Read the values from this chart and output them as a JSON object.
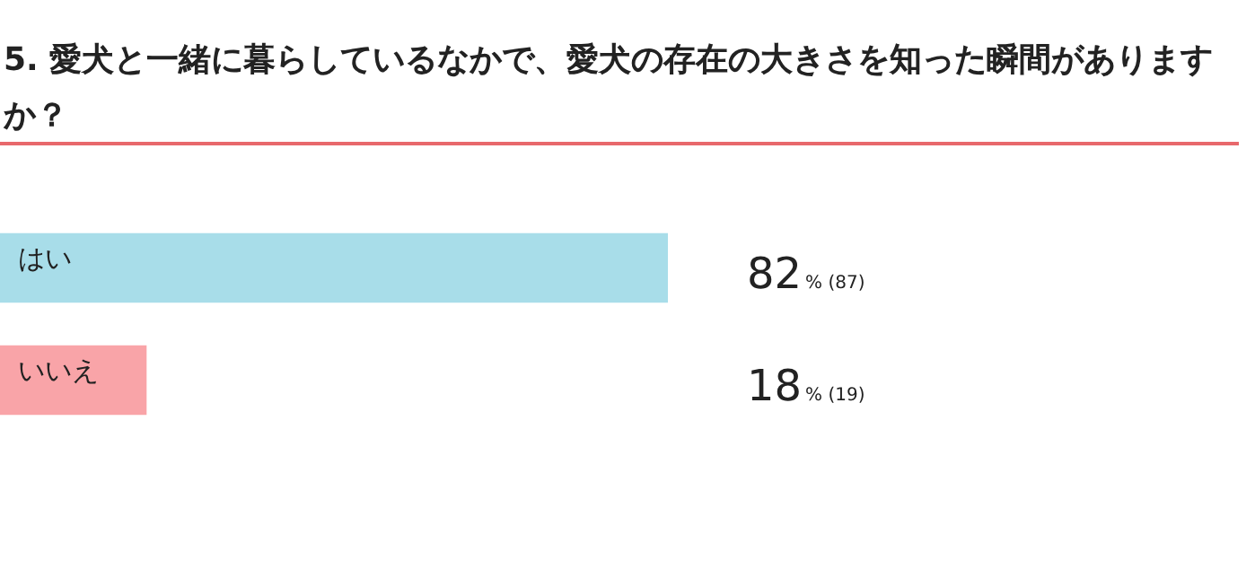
{
  "chart_data": {
    "type": "bar",
    "orientation": "horizontal",
    "title": "5. 愛犬と一緒に暮らしているなかで、愛犬の存在の大きさを知った瞬間がありますか？",
    "categories": [
      "はい",
      "いいえ"
    ],
    "values": [
      82,
      18
    ],
    "colors": [
      "#a8dde9",
      "#f9a4a8"
    ],
    "value_labels": [
      "82% (87)",
      "18% (19)"
    ],
    "legend": false
  }
}
